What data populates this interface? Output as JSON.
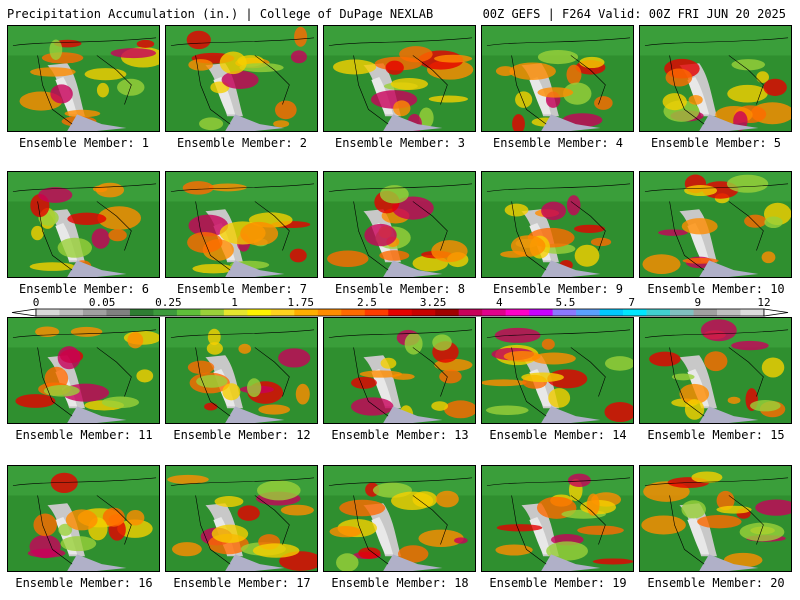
{
  "header": {
    "title": "Precipitation Accumulation (in.) | College of DuPage NEXLAB",
    "run_info": "00Z GEFS | F264 Valid: 00Z FRI JUN 20 2025"
  },
  "caption_prefix": "Ensemble Member: ",
  "members": [
    {
      "num": "1"
    },
    {
      "num": "2"
    },
    {
      "num": "3"
    },
    {
      "num": "4"
    },
    {
      "num": "5"
    },
    {
      "num": "6"
    },
    {
      "num": "7"
    },
    {
      "num": "8"
    },
    {
      "num": "9"
    },
    {
      "num": "10"
    },
    {
      "num": "11"
    },
    {
      "num": "12"
    },
    {
      "num": "13"
    },
    {
      "num": "14"
    },
    {
      "num": "15"
    },
    {
      "num": "16"
    },
    {
      "num": "17"
    },
    {
      "num": "18"
    },
    {
      "num": "19"
    },
    {
      "num": "20"
    }
  ],
  "colorbar": {
    "tick_labels": [
      "0",
      "0.05",
      "0.25",
      "1",
      "1.75",
      "2.5",
      "3.25",
      "4",
      "5.5",
      "7",
      "9",
      "12"
    ],
    "colors": [
      "#d9d9d9",
      "#bdbdbd",
      "#a0a0a0",
      "#808080",
      "#2e7d32",
      "#3c9a3c",
      "#5fbf3a",
      "#9ad13a",
      "#e6e62e",
      "#fff200",
      "#ffd21e",
      "#ffae00",
      "#ff8c00",
      "#ff6a00",
      "#ff3c00",
      "#e60000",
      "#c80000",
      "#a00000",
      "#c8005a",
      "#e0008c",
      "#ff00c8",
      "#c800ff",
      "#8c78ff",
      "#5aa0ff",
      "#00c8ff",
      "#00e6ff",
      "#40d0d0",
      "#80c0c0",
      "#a0a0a0",
      "#c0c0c0",
      "#dcdcdc"
    ]
  }
}
